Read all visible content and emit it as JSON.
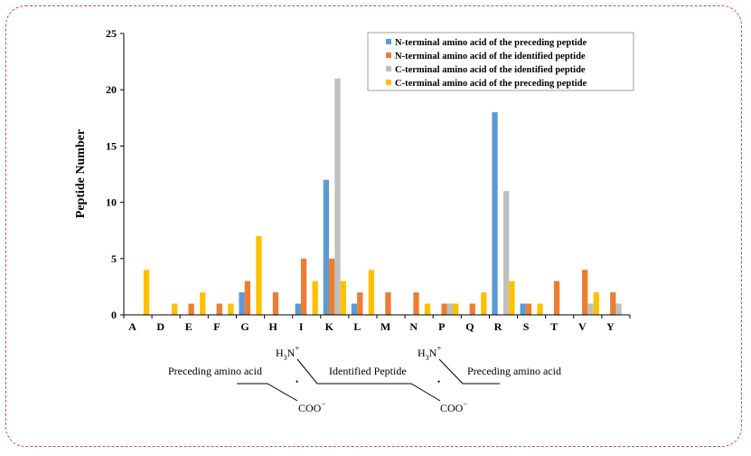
{
  "chart_data": {
    "type": "bar",
    "ylabel": "Peptide Number",
    "ylim": [
      0,
      25
    ],
    "yticks": [
      0,
      5,
      10,
      15,
      20,
      25
    ],
    "legend_position": "top-right",
    "categories": [
      "A",
      "D",
      "E",
      "F",
      "G",
      "H",
      "I",
      "K",
      "L",
      "M",
      "N",
      "P",
      "Q",
      "R",
      "S",
      "T",
      "V",
      "Y"
    ],
    "series": [
      {
        "name": "N-terminal amino acid of the preceding peptide",
        "color": "#5b9bd5",
        "values": [
          0,
          0,
          0,
          0,
          2,
          0,
          1,
          12,
          1,
          0,
          0,
          0,
          0,
          18,
          1,
          0,
          0,
          0
        ]
      },
      {
        "name": "N-terminal amino acid of the identified peptide",
        "color": "#ed7d31",
        "values": [
          0,
          0,
          1,
          1,
          3,
          2,
          5,
          5,
          2,
          2,
          2,
          1,
          1,
          0,
          1,
          3,
          4,
          2
        ]
      },
      {
        "name": "C-terminal amino acid of the identified peptide",
        "color": "#bfbfbf",
        "values": [
          0,
          0,
          0,
          0,
          0,
          0,
          0,
          21,
          0,
          0,
          0,
          1,
          0,
          11,
          0,
          0,
          1,
          1
        ]
      },
      {
        "name": "C-terminal amino acid of the preceding peptide",
        "color": "#ffc000",
        "values": [
          4,
          1,
          2,
          1,
          7,
          0,
          3,
          3,
          4,
          0,
          1,
          1,
          2,
          3,
          1,
          0,
          2,
          0
        ]
      }
    ]
  },
  "diagram": {
    "left_label": "Preceding amino acid",
    "middle_label": "Identified Peptide",
    "right_label": "Preceding amino acid",
    "amine_left": {
      "base": "H",
      "sub": "3",
      "atom": "N",
      "sup": "+"
    },
    "amine_right": {
      "base": "H",
      "sub": "3",
      "atom": "N",
      "sup": "+"
    },
    "carboxyl_left": {
      "base": "COO",
      "sup": "−"
    },
    "carboxyl_right": {
      "base": "COO",
      "sup": "−"
    },
    "dot": "•"
  }
}
